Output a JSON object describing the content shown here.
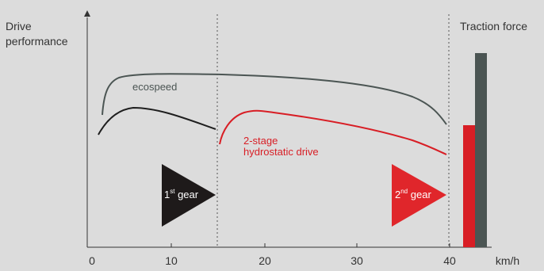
{
  "y_axis_label": [
    "Drive",
    "performance"
  ],
  "bar_axis_label": "Traction force",
  "x_unit": "km/h",
  "x_ticks": [
    "0",
    "10",
    "20",
    "30",
    "40"
  ],
  "curves": {
    "ecospeed": {
      "label": "ecospeed",
      "color": "#4b5553"
    },
    "hydrostatic": {
      "label": [
        "2-stage",
        "hydrostatic drive"
      ],
      "color": "#d81e25"
    },
    "first_gear_curve": {
      "color": "#1e1e1e"
    }
  },
  "gears": {
    "first": {
      "number": "1",
      "suffix": "st",
      "word": " gear",
      "color": "#1e1a1a"
    },
    "second": {
      "number": "2",
      "suffix": "nd",
      "word": " gear",
      "color": "#e0262b"
    }
  },
  "traction_bars": [
    {
      "name": "2-stage hydrostatic drive",
      "color": "#d81e25"
    },
    {
      "name": "ecospeed",
      "color": "#4b5553"
    }
  ]
}
